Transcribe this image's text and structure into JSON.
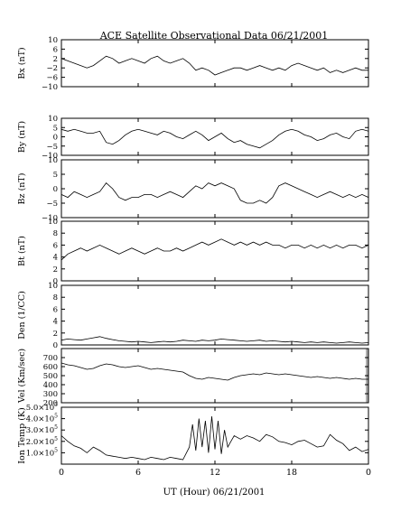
{
  "title": "ACE Satellite Observational Data   06/21/2001",
  "xaxis": {
    "label": "UT (Hour)  06/21/2001",
    "tick_labels": [
      "0",
      "6",
      "12",
      "18",
      "0"
    ],
    "range_hours": [
      0,
      24
    ]
  },
  "colors": {
    "line": "#000000",
    "frame": "#000000",
    "missing_data_band": "#b0b0b0"
  },
  "chart_data": [
    {
      "type": "line",
      "id": "bx",
      "ylabel": "Bx (nT)",
      "ylim": [
        -10,
        10
      ],
      "yticks": [
        -10,
        -6,
        -2,
        2,
        6,
        10
      ],
      "ytick_labels": [
        "−10",
        "−6",
        "−2",
        "2",
        "6",
        "10"
      ],
      "x": [
        0,
        0.5,
        1,
        1.5,
        2,
        2.5,
        3,
        3.5,
        4,
        4.5,
        5,
        5.5,
        6,
        6.5,
        7,
        7.5,
        8,
        8.5,
        9,
        9.5,
        10,
        10.5,
        11,
        11.5,
        12,
        12.5,
        13,
        13.5,
        14,
        14.5,
        15,
        15.5,
        16,
        16.5,
        17,
        17.5,
        18,
        18.5,
        19,
        19.5,
        20,
        20.5,
        21,
        21.5,
        22,
        22.5,
        23,
        23.5,
        24
      ],
      "y": [
        2,
        1,
        0,
        -1,
        -2,
        -1,
        1,
        3,
        2,
        0,
        1,
        2,
        1,
        0,
        2,
        3,
        1,
        0,
        1,
        2,
        0,
        -3,
        -2,
        -3,
        -5,
        -4,
        -3,
        -2,
        -2,
        -3,
        -2,
        -1,
        -2,
        -3,
        -2,
        -3,
        -1,
        0,
        -1,
        -2,
        -3,
        -2,
        -4,
        -3,
        -4,
        -3,
        -2,
        -3,
        -3
      ]
    },
    {
      "type": "line",
      "id": "by",
      "ylabel": "By (nT)",
      "ylim": [
        -10,
        10
      ],
      "yticks": [
        -10,
        -5,
        0,
        5,
        10
      ],
      "ytick_labels": [
        "−10",
        "−5",
        "0",
        "5",
        "10"
      ],
      "x": [
        0,
        0.5,
        1,
        1.5,
        2,
        2.5,
        3,
        3.5,
        4,
        4.5,
        5,
        5.5,
        6,
        6.5,
        7,
        7.5,
        8,
        8.5,
        9,
        9.5,
        10,
        10.5,
        11,
        11.5,
        12,
        12.5,
        13,
        13.5,
        14,
        14.5,
        15,
        15.5,
        16,
        16.5,
        17,
        17.5,
        18,
        18.5,
        19,
        19.5,
        20,
        20.5,
        21,
        21.5,
        22,
        22.5,
        23,
        23.5,
        24
      ],
      "y": [
        4,
        3,
        4,
        3,
        2,
        2,
        3,
        -3,
        -4,
        -2,
        1,
        3,
        4,
        3,
        2,
        1,
        3,
        2,
        0,
        -1,
        1,
        3,
        1,
        -2,
        0,
        2,
        -1,
        -3,
        -2,
        -4,
        -5,
        -6,
        -4,
        -2,
        1,
        3,
        4,
        3,
        1,
        0,
        -2,
        -1,
        1,
        2,
        0,
        -1,
        3,
        4,
        3
      ]
    },
    {
      "type": "line",
      "id": "bz",
      "ylabel": "Bz (nT)",
      "ylim": [
        -10,
        10
      ],
      "yticks": [
        -10,
        -5,
        0,
        5,
        10
      ],
      "ytick_labels": [
        "−10",
        "−5",
        "0",
        "5",
        "10"
      ],
      "x": [
        0,
        0.5,
        1,
        1.5,
        2,
        2.5,
        3,
        3.5,
        4,
        4.5,
        5,
        5.5,
        6,
        6.5,
        7,
        7.5,
        8,
        8.5,
        9,
        9.5,
        10,
        10.5,
        11,
        11.5,
        12,
        12.5,
        13,
        13.5,
        14,
        14.5,
        15,
        15.5,
        16,
        16.5,
        17,
        17.5,
        18,
        18.5,
        19,
        19.5,
        20,
        20.5,
        21,
        21.5,
        22,
        22.5,
        23,
        23.5,
        24
      ],
      "y": [
        -2,
        -3,
        -1,
        -2,
        -3,
        -2,
        -1,
        2,
        0,
        -3,
        -4,
        -3,
        -3,
        -2,
        -2,
        -3,
        -2,
        -1,
        -2,
        -3,
        -1,
        1,
        0,
        2,
        1,
        2,
        1,
        0,
        -4,
        -5,
        -5,
        -4,
        -5,
        -3,
        1,
        2,
        1,
        0,
        -1,
        -2,
        -3,
        -2,
        -1,
        -2,
        -3,
        -2,
        -3,
        -2,
        -3
      ]
    },
    {
      "type": "line",
      "id": "bt",
      "ylabel": "Bt (nT)",
      "ylim": [
        0,
        10
      ],
      "yticks": [
        0,
        2,
        4,
        6,
        8,
        10
      ],
      "ytick_labels": [
        "0",
        "2",
        "4",
        "6",
        "8",
        "10"
      ],
      "x": [
        0,
        0.5,
        1,
        1.5,
        2,
        2.5,
        3,
        3.5,
        4,
        4.5,
        5,
        5.5,
        6,
        6.5,
        7,
        7.5,
        8,
        8.5,
        9,
        9.5,
        10,
        10.5,
        11,
        11.5,
        12,
        12.5,
        13,
        13.5,
        14,
        14.5,
        15,
        15.5,
        16,
        16.5,
        17,
        17.5,
        18,
        18.5,
        19,
        19.5,
        20,
        20.5,
        21,
        21.5,
        22,
        22.5,
        23,
        23.5,
        24
      ],
      "y": [
        3.5,
        4.5,
        5,
        5.5,
        5,
        5.5,
        6,
        5.5,
        5,
        4.5,
        5,
        5.5,
        5,
        4.5,
        5,
        5.5,
        5,
        5,
        5.5,
        5,
        5.5,
        6,
        6.5,
        6,
        6.5,
        7,
        6.5,
        6,
        6.5,
        6,
        6.5,
        6,
        6.5,
        6,
        6,
        5.5,
        6,
        6,
        5.5,
        6,
        5.5,
        6,
        5.5,
        6,
        5.5,
        6,
        6,
        5.5,
        6
      ]
    },
    {
      "type": "line",
      "id": "den",
      "ylabel": "Den (1/CC)",
      "ylim": [
        0,
        10
      ],
      "yticks": [
        0,
        2,
        4,
        6,
        8,
        10
      ],
      "ytick_labels": [
        "0",
        "2",
        "4",
        "6",
        "8",
        "10"
      ],
      "x": [
        0,
        0.5,
        1,
        1.5,
        2,
        2.5,
        3,
        3.5,
        4,
        4.5,
        5,
        5.5,
        6,
        6.5,
        7,
        7.5,
        8,
        8.5,
        9,
        9.5,
        10,
        10.5,
        11,
        11.5,
        12,
        12.5,
        13,
        13.5,
        14,
        14.5,
        15,
        15.5,
        16,
        16.5,
        17,
        17.5,
        18,
        18.5,
        19,
        19.5,
        20,
        20.5,
        21,
        21.5,
        22,
        22.5,
        23,
        23.5,
        24
      ],
      "y": [
        0.8,
        1,
        0.9,
        0.8,
        1,
        1.2,
        1.4,
        1.1,
        0.9,
        0.7,
        0.6,
        0.5,
        0.6,
        0.5,
        0.4,
        0.5,
        0.6,
        0.5,
        0.6,
        0.8,
        0.7,
        0.6,
        0.8,
        0.7,
        0.8,
        1,
        0.9,
        0.8,
        0.7,
        0.6,
        0.7,
        0.8,
        0.6,
        0.7,
        0.6,
        0.5,
        0.6,
        0.5,
        0.4,
        0.5,
        0.4,
        0.5,
        0.4,
        0.3,
        0.4,
        0.5,
        0.4,
        0.3,
        0.4
      ]
    },
    {
      "type": "line",
      "id": "vel",
      "ylabel": "Vel (Km/sec)",
      "ylim": [
        200,
        800
      ],
      "yticks": [
        200,
        300,
        400,
        500,
        600,
        700
      ],
      "ytick_labels": [
        "200",
        "300",
        "400",
        "500",
        "600",
        "700"
      ],
      "x": [
        0,
        0.5,
        1,
        1.5,
        2,
        2.5,
        3,
        3.5,
        4,
        4.5,
        5,
        5.5,
        6,
        6.5,
        7,
        7.5,
        8,
        8.5,
        9,
        9.5,
        10,
        10.5,
        11,
        11.5,
        12,
        12.5,
        13,
        13.5,
        14,
        14.5,
        15,
        15.5,
        16,
        16.5,
        17,
        17.5,
        18,
        18.5,
        19,
        19.5,
        20,
        20.5,
        21,
        21.5,
        22,
        22.5,
        23,
        23.5,
        24
      ],
      "y": [
        640,
        620,
        610,
        590,
        570,
        580,
        610,
        630,
        620,
        600,
        590,
        600,
        610,
        590,
        570,
        580,
        570,
        560,
        550,
        540,
        500,
        470,
        460,
        480,
        470,
        460,
        450,
        480,
        500,
        510,
        520,
        510,
        530,
        520,
        510,
        520,
        510,
        500,
        490,
        480,
        490,
        480,
        470,
        480,
        470,
        460,
        470,
        460,
        460
      ]
    },
    {
      "type": "line",
      "id": "temp",
      "ylabel": "Ion Temp (K)",
      "ylim": [
        0,
        500000
      ],
      "yticks": [
        100000,
        200000,
        300000,
        400000,
        500000
      ],
      "ytick_labels": [
        {
          "mantissa": "1.0",
          "exponent": "5"
        },
        {
          "mantissa": "2.0",
          "exponent": "5"
        },
        {
          "mantissa": "3.0",
          "exponent": "5"
        },
        {
          "mantissa": "4.0",
          "exponent": "5"
        },
        {
          "mantissa": "5.0",
          "exponent": "5"
        }
      ],
      "x": [
        0,
        0.5,
        1,
        1.5,
        2,
        2.5,
        3,
        3.5,
        4,
        4.5,
        5,
        5.5,
        6,
        6.5,
        7,
        7.5,
        8,
        8.5,
        9,
        9.5,
        10,
        10.25,
        10.5,
        10.75,
        11,
        11.25,
        11.5,
        11.75,
        12,
        12.25,
        12.5,
        12.75,
        13,
        13.25,
        13.5,
        14,
        14.5,
        15,
        15.5,
        16,
        16.5,
        17,
        17.5,
        18,
        18.5,
        19,
        19.5,
        20,
        20.5,
        21,
        21.5,
        22,
        22.5,
        23,
        23.5,
        24
      ],
      "y": [
        250000,
        200000,
        160000,
        140000,
        100000,
        150000,
        120000,
        80000,
        70000,
        60000,
        50000,
        60000,
        50000,
        40000,
        60000,
        50000,
        40000,
        60000,
        50000,
        40000,
        150000,
        350000,
        120000,
        400000,
        150000,
        380000,
        100000,
        420000,
        130000,
        380000,
        90000,
        300000,
        150000,
        200000,
        250000,
        220000,
        250000,
        230000,
        200000,
        260000,
        240000,
        200000,
        190000,
        170000,
        200000,
        210000,
        180000,
        150000,
        160000,
        260000,
        210000,
        180000,
        120000,
        150000,
        110000,
        130000
      ]
    }
  ]
}
